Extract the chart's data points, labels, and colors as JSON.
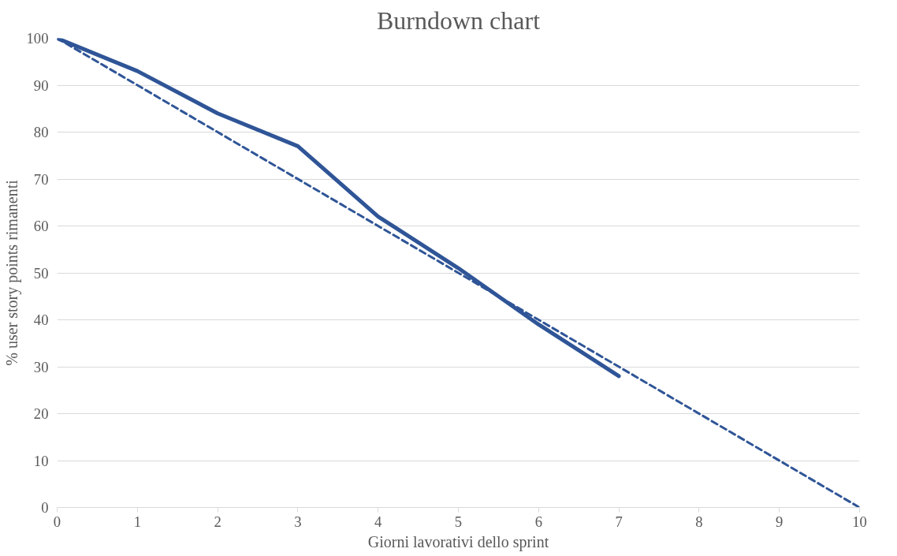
{
  "chart_data": {
    "type": "line",
    "title": "Burndown chart",
    "xlabel": "Giorni lavorativi dello sprint",
    "ylabel": "% user story points rimanenti",
    "xlim": [
      0,
      10
    ],
    "xticks": [
      0,
      1,
      2,
      3,
      4,
      5,
      6,
      7,
      8,
      9,
      10
    ],
    "ylim": [
      0,
      100
    ],
    "yticks": [
      0,
      10,
      20,
      30,
      40,
      50,
      60,
      70,
      80,
      90,
      100
    ],
    "grid": "y",
    "series": [
      {
        "color": "#2f5597",
        "line_style": "solid",
        "x": [
          0,
          1,
          2,
          3,
          4,
          5,
          6,
          7
        ],
        "values": [
          100,
          93,
          84,
          77,
          62,
          51,
          39,
          28
        ]
      },
      {
        "color": "#2f5597",
        "line_style": "dashed",
        "x": [
          0,
          10
        ],
        "values": [
          100,
          0
        ]
      }
    ]
  }
}
